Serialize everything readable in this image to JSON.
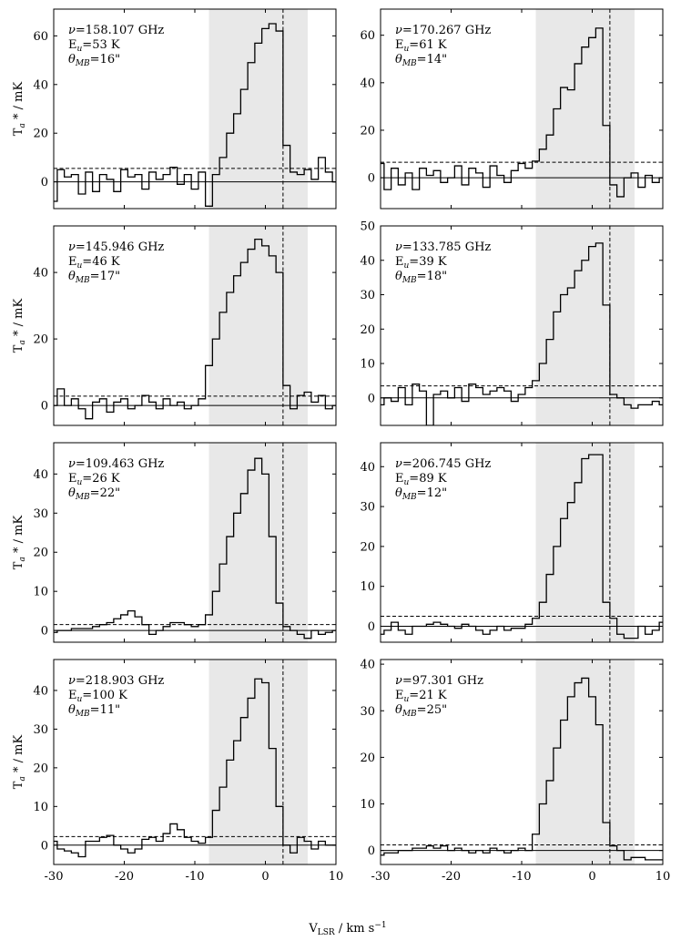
{
  "figure": {
    "xlabel": "V",
    "xlabel_sub": "LSR",
    "xlabel_unit": " / km s",
    "xlabel_sup": "−1",
    "ylabel_main": "T",
    "ylabel_sub": "a",
    "ylabel_rest": " * / mK",
    "freq_symbol": "ν",
    "eu_symbol": "E",
    "eu_sub": "u",
    "theta_symbol": "θ",
    "theta_sub": "MB"
  },
  "colors": {
    "line": "#000000",
    "shade": "#e8e8e8",
    "frame": "#000000"
  },
  "chart_data": [
    {
      "type": "line",
      "drawstyle": "steps-mid",
      "freq": "158.107 GHz",
      "eu": "53 K",
      "theta": "16\"",
      "xlim": [
        -30,
        10
      ],
      "ylim": [
        -11,
        71
      ],
      "yticks": [
        0,
        20,
        40,
        60
      ],
      "xticks": [
        -30,
        -20,
        -10,
        0,
        10
      ],
      "shade": [
        -8,
        6
      ],
      "vline": 2.5,
      "noise": 5.5,
      "x": [
        -30,
        -29,
        -28,
        -27,
        -26,
        -25,
        -24,
        -23,
        -22,
        -21,
        -20,
        -19,
        -18,
        -17,
        -16,
        -15,
        -14,
        -13,
        -12,
        -11,
        -10,
        -9,
        -8,
        -7,
        -6,
        -5,
        -4,
        -3,
        -2,
        -1,
        0,
        1,
        2,
        3,
        4,
        5,
        6,
        7,
        8,
        9,
        10
      ],
      "values": [
        -8,
        5,
        2,
        3,
        -5,
        4,
        -4,
        3,
        1,
        -4,
        5,
        2,
        3,
        -3,
        4,
        1,
        3,
        6,
        -1,
        3,
        -3,
        4,
        -10,
        3,
        10,
        20,
        28,
        38,
        49,
        57,
        63,
        65,
        62,
        15,
        4,
        3,
        5,
        1,
        10,
        4,
        0
      ]
    },
    {
      "type": "line",
      "drawstyle": "steps-mid",
      "freq": "170.267 GHz",
      "eu": "61 K",
      "theta": "14\"",
      "xlim": [
        -30,
        10
      ],
      "ylim": [
        -13,
        71
      ],
      "yticks": [
        0,
        20,
        40,
        60
      ],
      "xticks": [
        -30,
        -20,
        -10,
        0,
        10
      ],
      "shade": [
        -8,
        6
      ],
      "vline": 2.5,
      "noise": 6.5,
      "x": [
        -30,
        -29,
        -28,
        -27,
        -26,
        -25,
        -24,
        -23,
        -22,
        -21,
        -20,
        -19,
        -18,
        -17,
        -16,
        -15,
        -14,
        -13,
        -12,
        -11,
        -10,
        -9,
        -8,
        -7,
        -6,
        -5,
        -4,
        -3,
        -2,
        -1,
        0,
        1,
        2,
        3,
        4,
        5,
        6,
        7,
        8,
        9,
        10
      ],
      "values": [
        6,
        -5,
        4,
        -3,
        2,
        -5,
        4,
        1,
        3,
        -2,
        0,
        5,
        -3,
        4,
        2,
        -4,
        5,
        1,
        -2,
        3,
        6,
        4,
        7,
        12,
        18,
        29,
        38,
        37,
        48,
        55,
        59,
        63,
        22,
        -3,
        -8,
        0,
        2,
        -4,
        1,
        -2,
        0
      ]
    },
    {
      "type": "line",
      "drawstyle": "steps-mid",
      "freq": "145.946 GHz",
      "eu": "46 K",
      "theta": "17\"",
      "xlim": [
        -30,
        10
      ],
      "ylim": [
        -6,
        54
      ],
      "yticks": [
        0,
        20,
        40
      ],
      "xticks": [
        -30,
        -20,
        -10,
        0,
        10
      ],
      "shade": [
        -8,
        6
      ],
      "vline": 2.5,
      "noise": 2.8,
      "x": [
        -30,
        -29,
        -28,
        -27,
        -26,
        -25,
        -24,
        -23,
        -22,
        -21,
        -20,
        -19,
        -18,
        -17,
        -16,
        -15,
        -14,
        -13,
        -12,
        -11,
        -10,
        -9,
        -8,
        -7,
        -6,
        -5,
        -4,
        -3,
        -2,
        -1,
        0,
        1,
        2,
        3,
        4,
        5,
        6,
        7,
        8,
        9,
        10
      ],
      "values": [
        0,
        5,
        0,
        2,
        -1,
        -4,
        1,
        2,
        -2,
        1,
        2,
        -1,
        0,
        3,
        1,
        -1,
        2,
        0,
        1,
        -1,
        0,
        2,
        12,
        20,
        28,
        34,
        39,
        43,
        47,
        50,
        48,
        45,
        40,
        6,
        -1,
        3,
        4,
        1,
        3,
        -1,
        0
      ]
    },
    {
      "type": "line",
      "drawstyle": "steps-mid",
      "freq": "133.785 GHz",
      "eu": "39 K",
      "theta": "18\"",
      "xlim": [
        -30,
        10
      ],
      "ylim": [
        -8,
        50
      ],
      "yticks": [
        0,
        10,
        20,
        30,
        40,
        50
      ],
      "xticks": [
        -30,
        -20,
        -10,
        0,
        10
      ],
      "shade": [
        -8,
        6
      ],
      "vline": 2.5,
      "noise": 3.5,
      "x": [
        -30,
        -29,
        -28,
        -27,
        -26,
        -25,
        -24,
        -23,
        -22,
        -21,
        -20,
        -19,
        -18,
        -17,
        -16,
        -15,
        -14,
        -13,
        -12,
        -11,
        -10,
        -9,
        -8,
        -7,
        -6,
        -5,
        -4,
        -3,
        -2,
        -1,
        0,
        1,
        2,
        3,
        4,
        5,
        6,
        7,
        8,
        9,
        10
      ],
      "values": [
        -2,
        0,
        -1,
        3,
        -2,
        4,
        2,
        -8,
        1,
        2,
        0,
        3,
        -1,
        4,
        3,
        1,
        2,
        3,
        2,
        -1,
        1,
        3,
        5,
        10,
        17,
        25,
        30,
        32,
        37,
        40,
        44,
        45,
        27,
        1,
        0,
        -2,
        -3,
        -2,
        -2,
        -1,
        -2
      ]
    },
    {
      "type": "line",
      "drawstyle": "steps-mid",
      "freq": "109.463 GHz",
      "eu": "26 K",
      "theta": "22\"",
      "xlim": [
        -30,
        10
      ],
      "ylim": [
        -3,
        48
      ],
      "yticks": [
        0,
        10,
        20,
        30,
        40
      ],
      "xticks": [
        -30,
        -20,
        -10,
        0,
        10
      ],
      "shade": [
        -8,
        6
      ],
      "vline": 2.5,
      "noise": 1.5,
      "x": [
        -30,
        -29,
        -28,
        -27,
        -26,
        -25,
        -24,
        -23,
        -22,
        -21,
        -20,
        -19,
        -18,
        -17,
        -16,
        -15,
        -14,
        -13,
        -12,
        -11,
        -10,
        -9,
        -8,
        -7,
        -6,
        -5,
        -4,
        -3,
        -2,
        -1,
        0,
        1,
        2,
        3,
        4,
        5,
        6,
        7,
        8,
        9,
        10
      ],
      "values": [
        -0.5,
        0,
        0,
        0.5,
        0.5,
        0.5,
        1,
        1.5,
        2,
        3,
        4,
        5,
        3.5,
        1.5,
        -1,
        0,
        1,
        2,
        2,
        1.5,
        1,
        1.5,
        4,
        10,
        17,
        24,
        30,
        35,
        41,
        44,
        40,
        24,
        7,
        1,
        0,
        -1,
        -2,
        0,
        -1,
        -0.5,
        0
      ]
    },
    {
      "type": "line",
      "drawstyle": "steps-mid",
      "freq": "206.745 GHz",
      "eu": "89 K",
      "theta": "12\"",
      "xlim": [
        -30,
        10
      ],
      "ylim": [
        -4,
        46
      ],
      "yticks": [
        0,
        10,
        20,
        30,
        40
      ],
      "xticks": [
        -30,
        -20,
        -10,
        0,
        10
      ],
      "shade": [
        -8,
        6
      ],
      "vline": 2.5,
      "noise": 2.5,
      "x": [
        -30,
        -29,
        -28,
        -27,
        -26,
        -25,
        -24,
        -23,
        -22,
        -21,
        -20,
        -19,
        -18,
        -17,
        -16,
        -15,
        -14,
        -13,
        -12,
        -11,
        -10,
        -9,
        -8,
        -7,
        -6,
        -5,
        -4,
        -3,
        -2,
        -1,
        0,
        1,
        2,
        3,
        4,
        5,
        6,
        7,
        8,
        9,
        10
      ],
      "values": [
        -2,
        -1,
        1,
        -1,
        -2,
        0,
        0,
        0.5,
        1,
        0.5,
        0,
        -0.5,
        0.5,
        0,
        -1,
        -2,
        -1,
        0,
        -1,
        -0.5,
        -0.5,
        0.5,
        2,
        6,
        13,
        20,
        27,
        31,
        36,
        42,
        43,
        43,
        6,
        2,
        -2,
        -3,
        -3,
        0,
        -2,
        -1,
        1
      ]
    },
    {
      "type": "line",
      "drawstyle": "steps-mid",
      "freq": "218.903 GHz",
      "eu": "100 K",
      "theta": "11\"",
      "xlim": [
        -30,
        10
      ],
      "ylim": [
        -5,
        48
      ],
      "yticks": [
        0,
        10,
        20,
        30,
        40
      ],
      "xticks": [
        -30,
        -20,
        -10,
        0,
        10
      ],
      "shade": [
        -8,
        6
      ],
      "vline": 2.5,
      "noise": 2.2,
      "x": [
        -30,
        -29,
        -28,
        -27,
        -26,
        -25,
        -24,
        -23,
        -22,
        -21,
        -20,
        -19,
        -18,
        -17,
        -16,
        -15,
        -14,
        -13,
        -12,
        -11,
        -10,
        -9,
        -8,
        -7,
        -6,
        -5,
        -4,
        -3,
        -2,
        -1,
        0,
        1,
        2,
        3,
        4,
        5,
        6,
        7,
        8,
        9,
        10
      ],
      "values": [
        1,
        -1,
        -1.5,
        -2,
        -3,
        1,
        1,
        2,
        2.5,
        0,
        -1,
        -2,
        -1,
        1.5,
        2,
        1,
        3,
        5.5,
        4,
        2,
        1,
        0.5,
        2,
        9,
        15,
        22,
        27,
        33,
        38,
        43,
        42,
        25,
        10,
        0,
        -2,
        2,
        1,
        -1,
        1,
        0,
        0
      ]
    },
    {
      "type": "line",
      "drawstyle": "steps-mid",
      "freq": "97.301 GHz",
      "eu": "21 K",
      "theta": "25\"",
      "xlim": [
        -30,
        10
      ],
      "ylim": [
        -3,
        41
      ],
      "yticks": [
        0,
        10,
        20,
        30,
        40
      ],
      "xticks": [
        -30,
        -20,
        -10,
        0,
        10
      ],
      "shade": [
        -8,
        6
      ],
      "vline": 2.5,
      "noise": 1.2,
      "x": [
        -30,
        -29,
        -28,
        -27,
        -26,
        -25,
        -24,
        -23,
        -22,
        -21,
        -20,
        -19,
        -18,
        -17,
        -16,
        -15,
        -14,
        -13,
        -12,
        -11,
        -10,
        -9,
        -8,
        -7,
        -6,
        -5,
        -4,
        -3,
        -2,
        -1,
        0,
        1,
        2,
        3,
        4,
        5,
        6,
        7,
        8,
        9,
        10
      ],
      "values": [
        -1,
        -0.5,
        -0.5,
        0,
        0,
        0.5,
        0.5,
        1,
        0.5,
        1,
        0,
        0.5,
        0,
        -0.5,
        0,
        -0.5,
        0.5,
        0,
        -0.5,
        0,
        0.5,
        0,
        3.5,
        10,
        15,
        22,
        28,
        33,
        36,
        37,
        33,
        27,
        6,
        1,
        0,
        -2,
        -1.5,
        -1.5,
        -2,
        -2,
        -2
      ]
    }
  ]
}
